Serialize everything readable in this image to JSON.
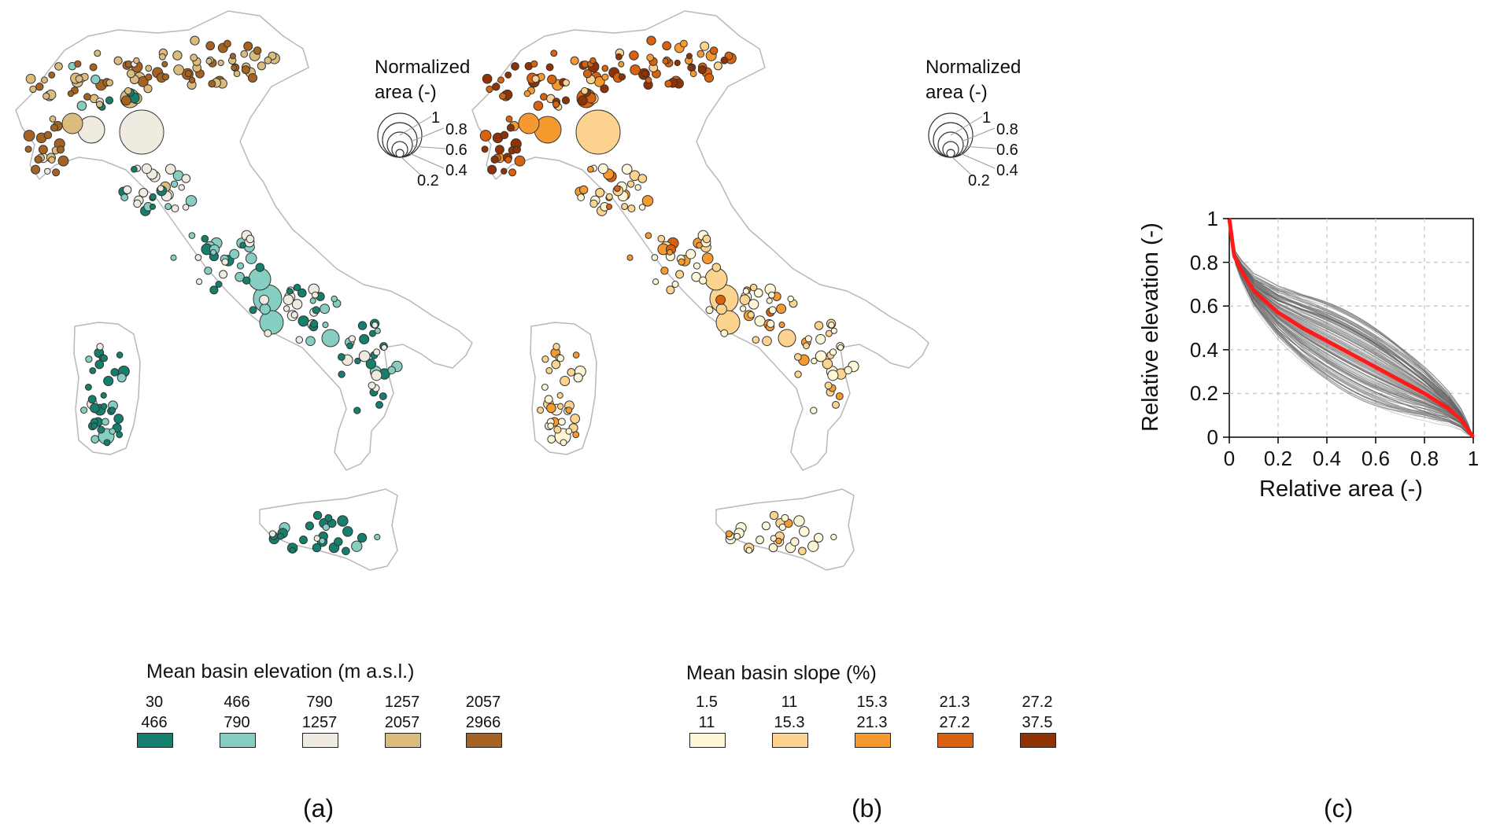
{
  "panels": [
    {
      "label": "(a)",
      "legend_title": "Mean basin elevation (m a.s.l.)",
      "classes": [
        {
          "upper": "30",
          "lower": "466",
          "color": "#137f6c"
        },
        {
          "upper": "466",
          "lower": "790",
          "color": "#86cec2"
        },
        {
          "upper": "790",
          "lower": "1257",
          "color": "#f0ebe0"
        },
        {
          "upper": "1257",
          "lower": "2057",
          "color": "#dcbc7c"
        },
        {
          "upper": "2057",
          "lower": "2966",
          "color": "#a56323"
        }
      ]
    },
    {
      "label": "(b)",
      "legend_title": "Mean basin slope (%)",
      "classes": [
        {
          "upper": "1.5",
          "lower": "11",
          "color": "#fdf7d8"
        },
        {
          "upper": "11",
          "lower": "15.3",
          "color": "#fcd38f"
        },
        {
          "upper": "15.3",
          "lower": "21.3",
          "color": "#f6992f"
        },
        {
          "upper": "21.3",
          "lower": "27.2",
          "color": "#d9620e"
        },
        {
          "upper": "27.2",
          "lower": "37.5",
          "color": "#8f3305"
        }
      ]
    }
  ],
  "size_legend": {
    "title_line1": "Normalized",
    "title_line2": "area (-)",
    "labels": [
      "1",
      "0.8",
      "0.6",
      "0.4",
      "0.2"
    ]
  },
  "chart_data": {
    "type": "line",
    "label": "(c)",
    "xlabel": "Relative area (-)",
    "ylabel": "Relative elevation (-)",
    "xlim": [
      0,
      1
    ],
    "ylim": [
      0,
      1
    ],
    "xticks": [
      "0",
      "0.2",
      "0.4",
      "0.6",
      "0.8",
      "1"
    ],
    "yticks": [
      "0",
      "0.2",
      "0.4",
      "0.6",
      "0.8",
      "1"
    ],
    "grid": true,
    "series": [
      {
        "color": "#ff1a1a",
        "x": [
          0,
          0.02,
          0.05,
          0.1,
          0.2,
          0.3,
          0.4,
          0.5,
          0.6,
          0.7,
          0.8,
          0.9,
          0.95,
          1
        ],
        "y": [
          1,
          0.83,
          0.76,
          0.67,
          0.57,
          0.5,
          0.44,
          0.38,
          0.32,
          0.26,
          0.2,
          0.13,
          0.08,
          0
        ]
      }
    ]
  }
}
